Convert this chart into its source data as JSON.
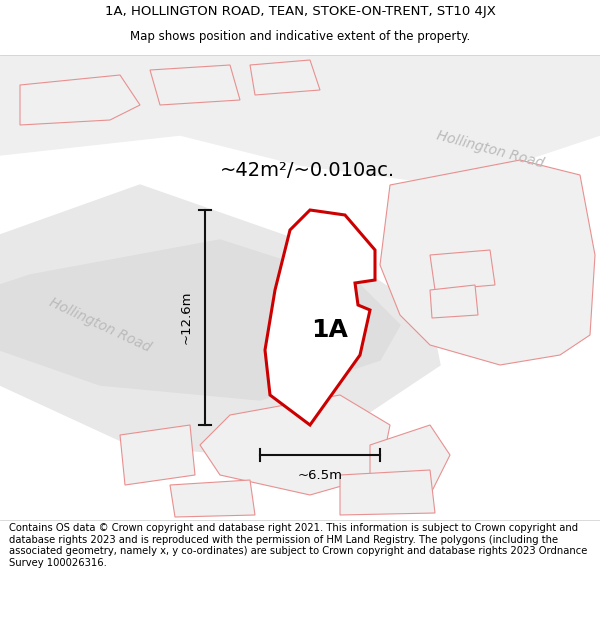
{
  "title_line1": "1A, HOLLINGTON ROAD, TEAN, STOKE-ON-TRENT, ST10 4JX",
  "title_line2": "Map shows position and indicative extent of the property.",
  "footer_text": "Contains OS data © Crown copyright and database right 2021. This information is subject to Crown copyright and database rights 2023 and is reproduced with the permission of HM Land Registry. The polygons (including the associated geometry, namely x, y co-ordinates) are subject to Crown copyright and database rights 2023 Ordnance Survey 100026316.",
  "area_label": "~42m²/~0.010ac.",
  "label_1A": "1A",
  "dim_width": "~6.5m",
  "dim_height": "~12.6m",
  "road_label_upper": "Hollington Road",
  "road_label_lower": "Hollington Road",
  "main_polygon_color": "#cc0000",
  "nearby_polygon_color": "#e89090",
  "nearby_polygon_fill": "#f0f0f0",
  "road_fill_color": "#e0e0e0",
  "road_edge_color": "#cccccc",
  "road_label_color": "#bbbbbb",
  "dim_line_color": "#111111",
  "title_fontsize": 9.5,
  "subtitle_fontsize": 8.5,
  "footer_fontsize": 7.2
}
